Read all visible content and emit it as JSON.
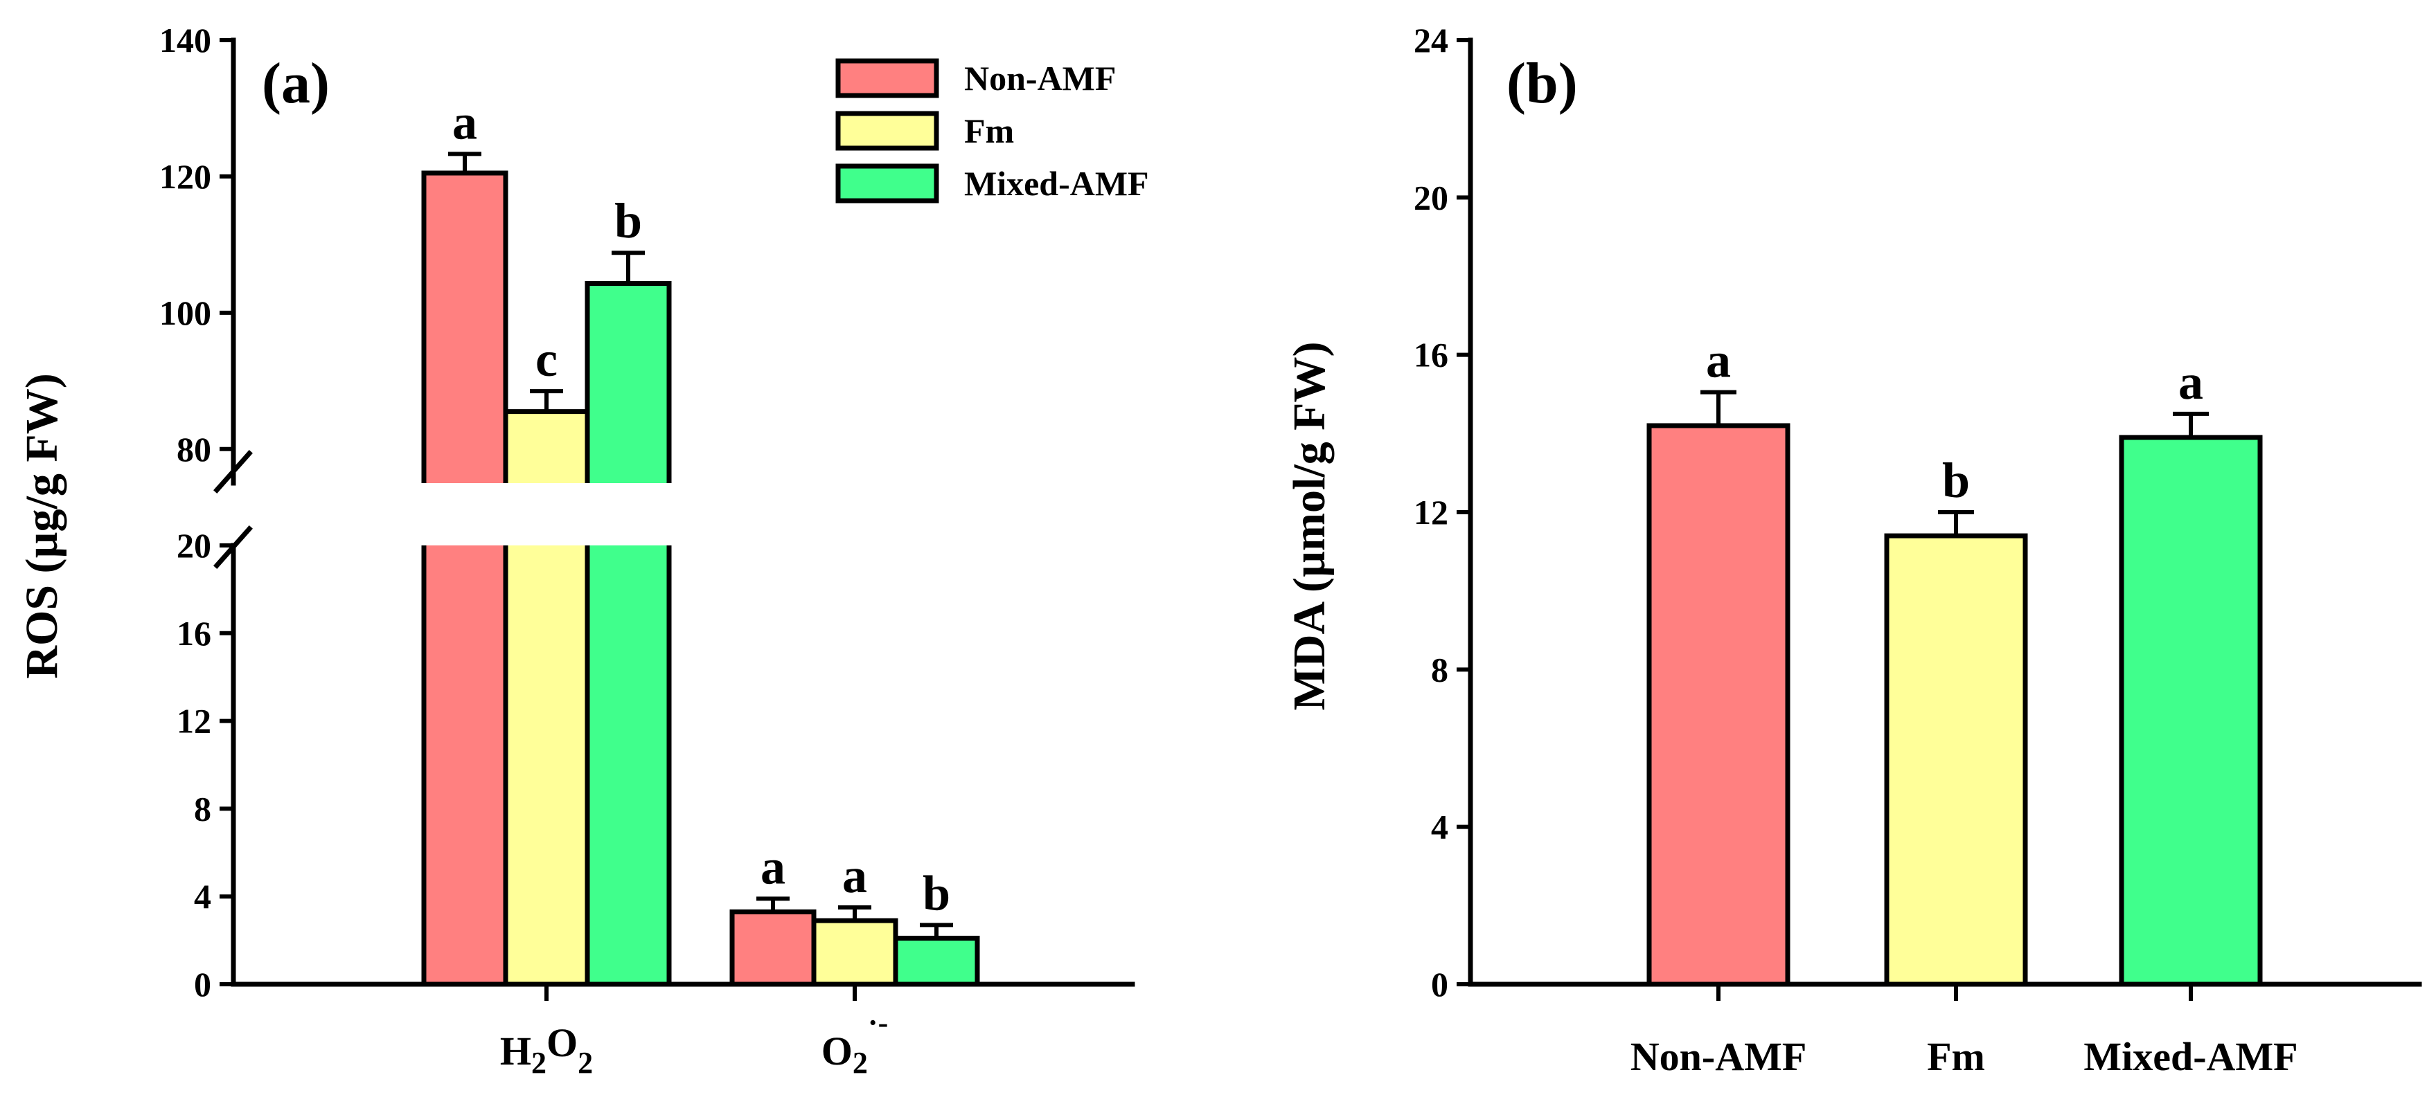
{
  "colors": {
    "Non-AMF": "#ff8080",
    "Fm": "#ffff99",
    "Mixed-AMF": "#40ff8c"
  },
  "chart_data": [
    {
      "type": "bar",
      "panel_label": "(a)",
      "ylabel": "ROS (µg/g FW)",
      "ylim_lower": [
        0,
        20
      ],
      "ylim_upper": [
        75,
        140
      ],
      "axis_break": [
        20,
        75
      ],
      "yticks_lower": [
        {
          "value": 0,
          "label": "0"
        },
        {
          "value": 4,
          "label": "4"
        },
        {
          "value": 8,
          "label": "8"
        },
        {
          "value": 12,
          "label": "12"
        },
        {
          "value": 16,
          "label": "16"
        },
        {
          "value": 20,
          "label": "20"
        }
      ],
      "yticks_upper": [
        {
          "value": 80,
          "label": "80"
        },
        {
          "value": 100,
          "label": "100"
        },
        {
          "value": 120,
          "label": "120"
        },
        {
          "value": 140,
          "label": "140"
        }
      ],
      "categories": [
        {
          "main": "H",
          "sub1": "2",
          "mid": "O",
          "sub2": "2",
          "sup": ""
        },
        {
          "main": "O",
          "sub1": "2",
          "mid": "",
          "sub2": "",
          "sup": "·-"
        }
      ],
      "series": [
        {
          "name": "Non-AMF",
          "values": [
            120.5,
            3.3
          ],
          "errors": [
            2.8,
            0.6
          ],
          "letters": [
            "a",
            "a"
          ]
        },
        {
          "name": "Fm",
          "values": [
            85.5,
            2.9
          ],
          "errors": [
            3.0,
            0.6
          ],
          "letters": [
            "c",
            "a"
          ]
        },
        {
          "name": "Mixed-AMF",
          "values": [
            104.3,
            2.1
          ],
          "errors": [
            4.5,
            0.6
          ],
          "letters": [
            "b",
            "b"
          ]
        }
      ],
      "legend": {
        "position": "top-right",
        "entries": [
          "Non-AMF",
          "Fm",
          "Mixed-AMF"
        ]
      }
    },
    {
      "type": "bar",
      "panel_label": "(b)",
      "ylabel": "MDA (µmol/g FW)",
      "ylim": [
        0,
        24
      ],
      "yticks": [
        {
          "value": 0,
          "label": "0"
        },
        {
          "value": 4,
          "label": "4"
        },
        {
          "value": 8,
          "label": "8"
        },
        {
          "value": 12,
          "label": "12"
        },
        {
          "value": 16,
          "label": "16"
        },
        {
          "value": 20,
          "label": "20"
        },
        {
          "value": 24,
          "label": "24"
        }
      ],
      "categories": [
        "Non-AMF",
        "Fm",
        "Mixed-AMF"
      ],
      "values": [
        14.2,
        11.4,
        13.9
      ],
      "errors": [
        0.85,
        0.6,
        0.6
      ],
      "letters": [
        "a",
        "b",
        "a"
      ]
    }
  ]
}
